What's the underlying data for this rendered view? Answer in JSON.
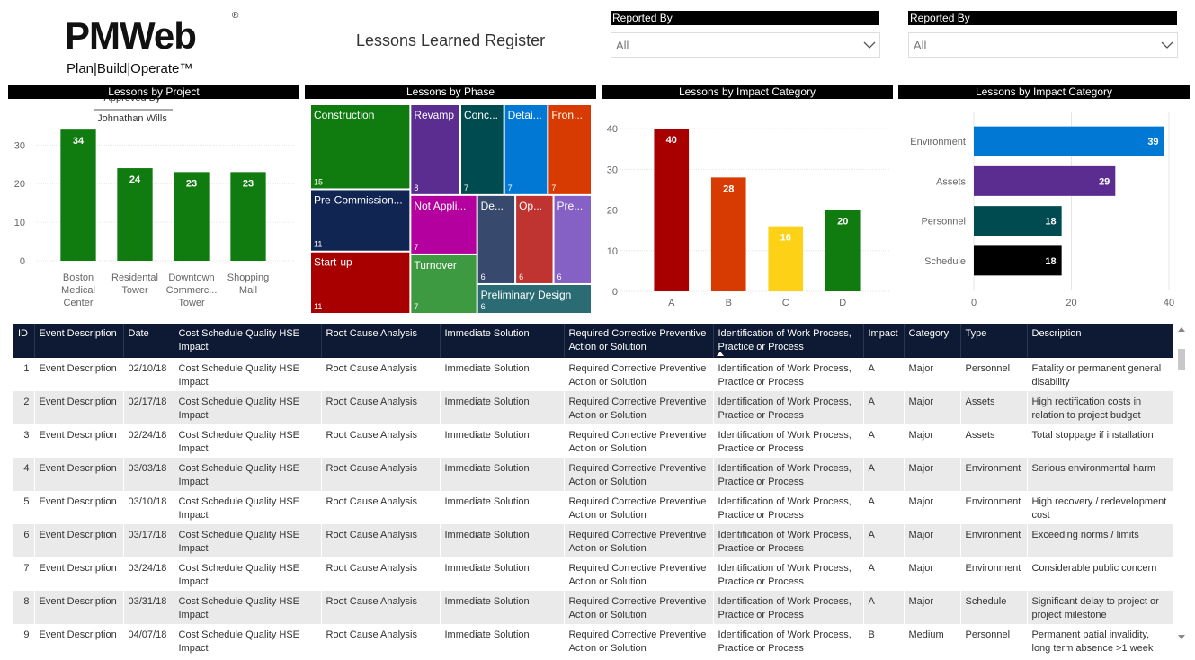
{
  "header": {
    "logo": "PMWeb",
    "registered": "®",
    "tagline": "Plan|Build|Operate™",
    "title": "Lessons Learned Register"
  },
  "filters": [
    {
      "label": "Reported By",
      "value": "All"
    },
    {
      "label": "Reported By",
      "value": "All"
    }
  ],
  "chart_data": [
    {
      "type": "bar",
      "title": "Lessons by Project",
      "categories": [
        "Boston Medical Center",
        "Residental Tower",
        "Downtown Commerc... Tower",
        "Shopping Mall"
      ],
      "values": [
        34,
        24,
        23,
        23
      ],
      "color": "#107c10",
      "ylim": [
        0,
        38
      ],
      "yticks": [
        0,
        10,
        20,
        30
      ],
      "grid": true,
      "tooltip": {
        "label": "Approved By",
        "value": "Johnathan Wills"
      }
    },
    {
      "type": "treemap",
      "title": "Lessons by Phase",
      "categories": [
        "Construction",
        "Pre-Commission...",
        "Start-up",
        "Revamp",
        "Conc...",
        "Detai...",
        "Fron...",
        "Not Appli...",
        "Turnover",
        "De...",
        "Op...",
        "Pre...",
        "Preliminary Design"
      ],
      "values": [
        15,
        11,
        11,
        8,
        7,
        7,
        7,
        7,
        7,
        6,
        6,
        6,
        6
      ],
      "colors": [
        "#107c10",
        "#102552",
        "#a80000",
        "#5c2d91",
        "#004b50",
        "#0078d4",
        "#d83b01",
        "#b4009e",
        "#3e9a41",
        "#374a6d",
        "#bf3330",
        "#8661c5",
        "#2b6b74"
      ]
    },
    {
      "type": "bar",
      "title": "Lessons by Impact Category",
      "categories": [
        "A",
        "B",
        "C",
        "D"
      ],
      "values": [
        40,
        28,
        16,
        20
      ],
      "colors": [
        "#a80000",
        "#d83b01",
        "#fcd116",
        "#107c10"
      ],
      "ylim": [
        0,
        44
      ],
      "yticks": [
        0,
        10,
        20,
        30,
        40
      ],
      "grid": true
    },
    {
      "type": "hbar",
      "title": "Lessons by Impact Category",
      "categories": [
        "Environment",
        "Assets",
        "Personnel",
        "Schedule"
      ],
      "values": [
        39,
        29,
        18,
        18
      ],
      "colors": [
        "#0078d4",
        "#5c2d91",
        "#004b50",
        "#000000"
      ],
      "xlim": [
        0,
        40
      ],
      "xticks": [
        0,
        20,
        40
      ],
      "grid": true
    }
  ],
  "table": {
    "columns": [
      "ID",
      "Event Description",
      "Date",
      "Cost Schedule Quality HSE Impact",
      "Root Cause Analysis",
      "Immediate Solution",
      "Required Corrective Preventive Action or Solution",
      "Identification of Work Process, Practice or Process",
      "Impact",
      "Category",
      "Type",
      "Description"
    ],
    "rows": [
      [
        1,
        "Event Description",
        "02/10/18",
        "Cost Schedule Quality HSE Impact",
        "Root Cause Analysis",
        "Immediate Solution",
        "Required Corrective Preventive Action or Solution",
        "Identification of Work Process, Practice or Process",
        "A",
        "Major",
        "Personnel",
        "Fatality or permanent general disability"
      ],
      [
        2,
        "Event Description",
        "02/17/18",
        "Cost Schedule Quality HSE Impact",
        "Root Cause Analysis",
        "Immediate Solution",
        "Required Corrective Preventive Action or Solution",
        "Identification of Work Process, Practice or Process",
        "A",
        "Major",
        "Assets",
        "High rectification costs in relation to project budget"
      ],
      [
        3,
        "Event Description",
        "02/24/18",
        "Cost Schedule Quality HSE Impact",
        "Root Cause Analysis",
        "Immediate Solution",
        "Required Corrective Preventive Action or Solution",
        "Identification of Work Process, Practice or Process",
        "A",
        "Major",
        "Assets",
        "Total stoppage if installation"
      ],
      [
        4,
        "Event Description",
        "03/03/18",
        "Cost Schedule Quality HSE Impact",
        "Root Cause Analysis",
        "Immediate Solution",
        "Required Corrective Preventive Action or Solution",
        "Identification of Work Process, Practice or Process",
        "A",
        "Major",
        "Environment",
        "Serious environmental harm"
      ],
      [
        5,
        "Event Description",
        "03/10/18",
        "Cost Schedule Quality HSE Impact",
        "Root Cause Analysis",
        "Immediate Solution",
        "Required Corrective Preventive Action or Solution",
        "Identification of Work Process, Practice or Process",
        "A",
        "Major",
        "Environment",
        "High recovery / redevelopment cost"
      ],
      [
        6,
        "Event Description",
        "03/17/18",
        "Cost Schedule Quality HSE Impact",
        "Root Cause Analysis",
        "Immediate Solution",
        "Required Corrective Preventive Action or Solution",
        "Identification of Work Process, Practice or Process",
        "A",
        "Major",
        "Environment",
        "Exceeding norms / limits"
      ],
      [
        7,
        "Event Description",
        "03/24/18",
        "Cost Schedule Quality HSE Impact",
        "Root Cause Analysis",
        "Immediate Solution",
        "Required Corrective Preventive Action or Solution",
        "Identification of Work Process, Practice or Process",
        "A",
        "Major",
        "Environment",
        "Considerable public concern"
      ],
      [
        8,
        "Event Description",
        "03/31/18",
        "Cost Schedule Quality HSE Impact",
        "Root Cause Analysis",
        "Immediate Solution",
        "Required Corrective Preventive Action or Solution",
        "Identification of Work Process, Practice or Process",
        "A",
        "Major",
        "Schedule",
        "Significant delay to project or project milestone"
      ],
      [
        9,
        "Event Description",
        "04/07/18",
        "Cost Schedule Quality HSE Impact",
        "Root Cause Analysis",
        "Immediate Solution",
        "Required Corrective Preventive Action or Solution",
        "Identification of Work Process, Practice or Process",
        "B",
        "Medium",
        "Personnel",
        "Permanent patial invalidity, long term absence >1 week"
      ]
    ]
  }
}
